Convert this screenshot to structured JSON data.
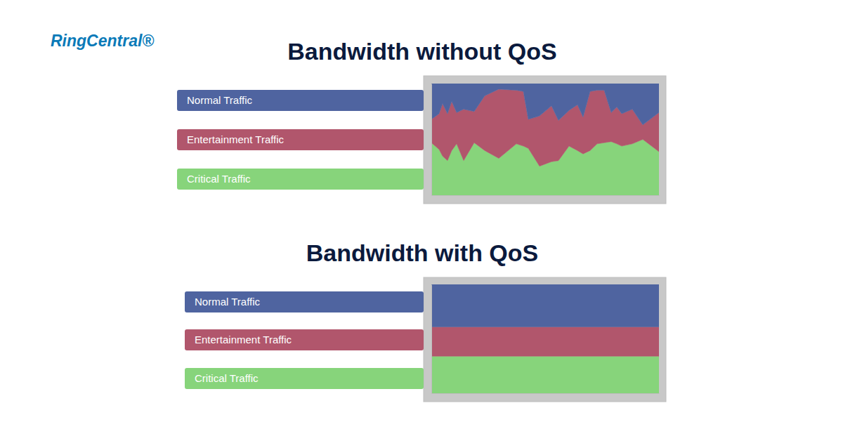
{
  "logo": "RingCentral®",
  "chart_data": [
    {
      "type": "area",
      "title": "Bandwidth without QoS",
      "stacked": true,
      "grid": false,
      "legend": "left",
      "tick_labels": false,
      "x": [
        0,
        11,
        16,
        23,
        29,
        36,
        46,
        61,
        76,
        96,
        121,
        131,
        138,
        154,
        171,
        181,
        196,
        208,
        216,
        226,
        236,
        246,
        256,
        264,
        271,
        286,
        301,
        324
      ],
      "xlim": [
        0,
        324
      ],
      "xticks": [],
      "ylim": [
        0,
        100
      ],
      "yticks": [],
      "series": [
        {
          "name": "Normal Traffic",
          "color": "#4f64a0",
          "values": [
            32,
            27,
            18,
            27,
            16,
            26,
            23,
            25,
            11,
            5,
            6,
            7,
            32,
            29,
            20,
            33,
            24,
            19,
            30,
            7,
            6,
            6,
            26,
            21,
            27,
            23,
            37,
            26
          ]
        },
        {
          "name": "Entertainment Traffic",
          "color": "#b1566c",
          "values": [
            21,
            32,
            47,
            42,
            44,
            28,
            46,
            28,
            49,
            62,
            48,
            49,
            26,
            45,
            50,
            36,
            32,
            41,
            33,
            53,
            48,
            47,
            26,
            33,
            29,
            31,
            13,
            35
          ]
        },
        {
          "name": "Critical Traffic",
          "color": "#87d47b",
          "values": [
            47,
            41,
            35,
            31,
            40,
            46,
            31,
            47,
            40,
            33,
            46,
            44,
            42,
            26,
            30,
            31,
            44,
            40,
            37,
            40,
            46,
            47,
            48,
            46,
            44,
            46,
            50,
            39
          ]
        }
      ]
    },
    {
      "type": "area",
      "title": "Bandwidth with QoS",
      "stacked": true,
      "grid": false,
      "legend": "left",
      "tick_labels": false,
      "x": [
        0,
        324
      ],
      "xlim": [
        0,
        324
      ],
      "xticks": [],
      "ylim": [
        0,
        100
      ],
      "yticks": [],
      "series": [
        {
          "name": "Normal Traffic",
          "color": "#4f64a0",
          "values": [
            39,
            39
          ]
        },
        {
          "name": "Entertainment Traffic",
          "color": "#b1566c",
          "values": [
            27,
            27
          ]
        },
        {
          "name": "Critical Traffic",
          "color": "#87d47b",
          "values": [
            34,
            34
          ]
        }
      ]
    }
  ]
}
